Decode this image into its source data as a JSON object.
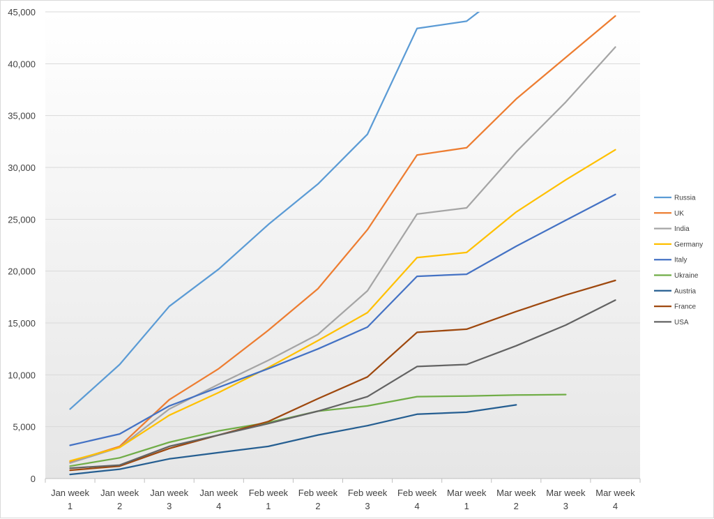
{
  "chart_data": {
    "type": "line",
    "title": "",
    "xlabel": "",
    "ylabel": "",
    "categories": [
      [
        "Jan week",
        "1"
      ],
      [
        "Jan week",
        "2"
      ],
      [
        "Jan week",
        "3"
      ],
      [
        "Jan week",
        "4"
      ],
      [
        "Feb week",
        "1"
      ],
      [
        "Feb week",
        "2"
      ],
      [
        "Feb week",
        "3"
      ],
      [
        "Feb week",
        "4"
      ],
      [
        "Mar week",
        "1"
      ],
      [
        "Mar week",
        "2"
      ],
      [
        "Mar week",
        "3"
      ],
      [
        "Mar week",
        "4"
      ]
    ],
    "ylim": [
      0,
      45000
    ],
    "yticks": [
      "0",
      "5,000",
      "10,000",
      "15,000",
      "20,000",
      "25,000",
      "30,000",
      "35,000",
      "40,000",
      "45,000"
    ],
    "grid": true,
    "legend_position": "right",
    "series": [
      {
        "name": "Russia",
        "color": "#5b9bd5",
        "values": [
          6700,
          11000,
          16600,
          20200,
          24500,
          28400,
          33200,
          43400,
          44100,
          47800,
          null,
          null
        ]
      },
      {
        "name": "UK",
        "color": "#ed7d31",
        "values": [
          1600,
          3100,
          7600,
          10600,
          14300,
          18300,
          24000,
          31200,
          31900,
          36600,
          40600,
          44600
        ]
      },
      {
        "name": "India",
        "color": "#a5a5a5",
        "values": [
          1500,
          3000,
          6700,
          9100,
          11400,
          13900,
          18100,
          25500,
          26100,
          31500,
          36300,
          41600
        ]
      },
      {
        "name": "Germany",
        "color": "#ffc000",
        "values": [
          1700,
          3000,
          6100,
          8300,
          10700,
          13300,
          16000,
          21300,
          21800,
          25700,
          28800,
          31700
        ]
      },
      {
        "name": "Italy",
        "color": "#4472c4",
        "values": [
          3200,
          4300,
          7000,
          8800,
          10600,
          12500,
          14600,
          19500,
          19700,
          22400,
          24900,
          27400
        ]
      },
      {
        "name": "Ukraine",
        "color": "#70ad47",
        "values": [
          1200,
          2000,
          3500,
          4600,
          5400,
          6500,
          7000,
          7900,
          7950,
          8050,
          8100,
          null
        ]
      },
      {
        "name": "Austria",
        "color": "#255e91",
        "values": [
          400,
          900,
          1900,
          2500,
          3100,
          4200,
          5100,
          6200,
          6400,
          7100,
          null,
          null
        ]
      },
      {
        "name": "France",
        "color": "#9e480e",
        "values": [
          800,
          1200,
          2900,
          4200,
          5500,
          7700,
          9800,
          14100,
          14400,
          16100,
          17700,
          19100
        ]
      },
      {
        "name": "USA",
        "color": "#636363",
        "values": [
          1000,
          1300,
          3100,
          4200,
          5300,
          6500,
          7900,
          10800,
          11000,
          12800,
          14800,
          17200
        ]
      }
    ]
  }
}
